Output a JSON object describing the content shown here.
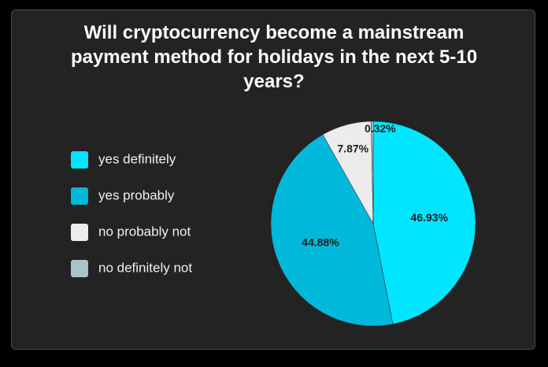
{
  "chart_data": {
    "type": "pie",
    "title": "Will cryptocurrency become a mainstream payment method for holidays in the next 5-10 years?",
    "categories": [
      "yes definitely",
      "yes probably",
      "no probably not",
      "no definitely not"
    ],
    "values": [
      46.93,
      44.88,
      7.87,
      0.32
    ],
    "value_labels": [
      "46.93%",
      "44.88%",
      "7.87%",
      "0.32%"
    ],
    "colors": [
      "#00e5ff",
      "#00b8d9",
      "#ececec",
      "#a9c3c8"
    ]
  }
}
